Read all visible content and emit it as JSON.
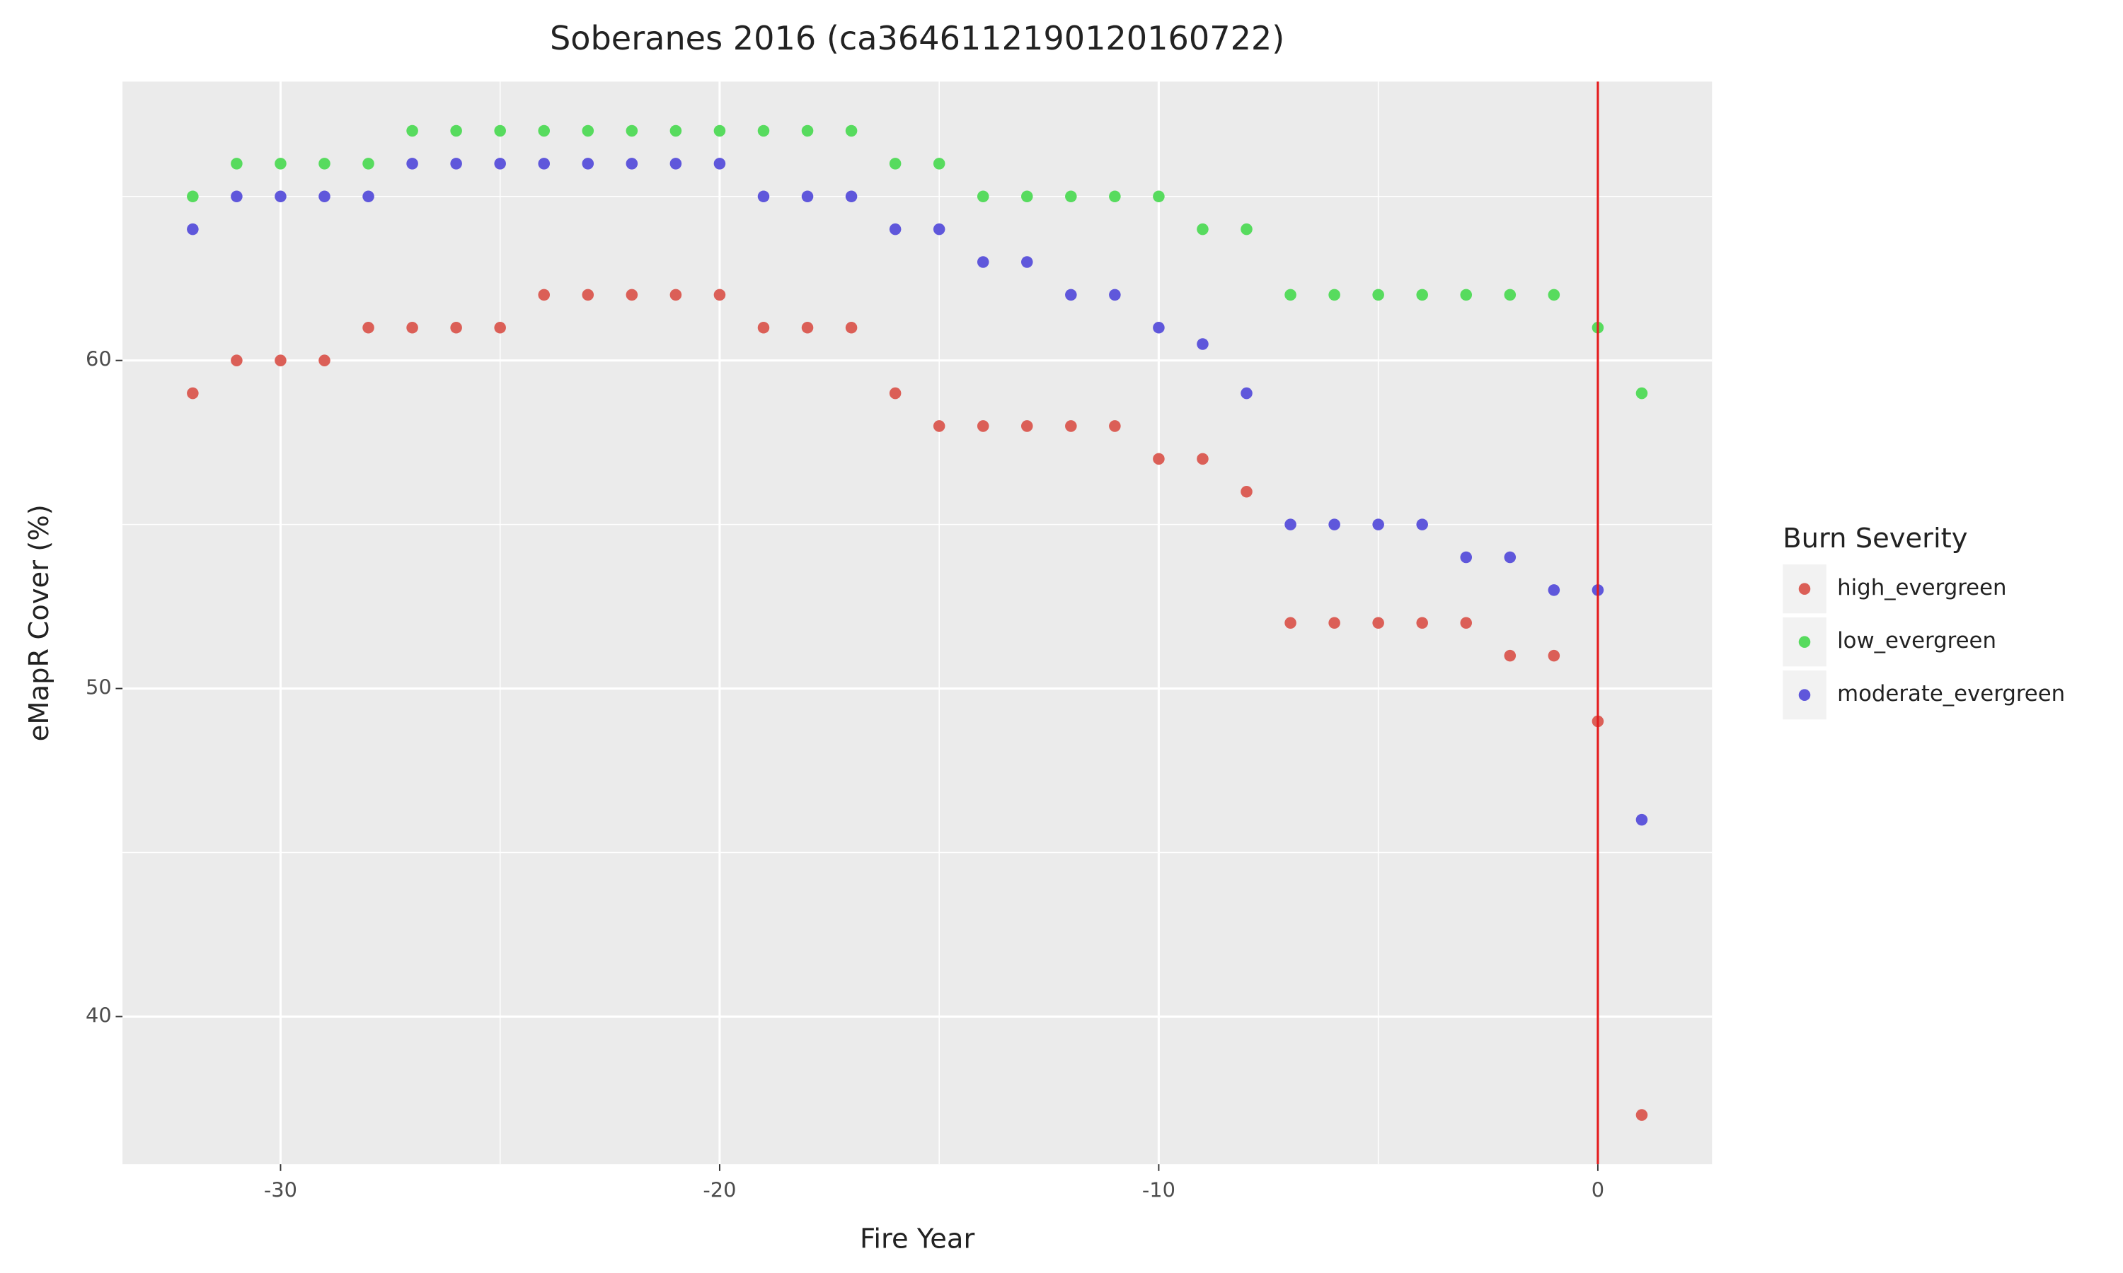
{
  "chart_data": {
    "type": "scatter",
    "title": "Soberanes 2016 (ca3646112190120160722)",
    "x_label": "Fire Year",
    "y_label": "eMapR Cover (%)",
    "legend_title": "Burn Severity",
    "legend_position": "right",
    "grid": true,
    "xlim": [
      -33.6,
      2.6
    ],
    "ylim": [
      35.5,
      68.5
    ],
    "xticks": [
      -30,
      -20,
      -10,
      0
    ],
    "yticks": [
      40,
      50,
      60
    ],
    "xminorticks": [
      -25,
      -15,
      -5
    ],
    "yminorticks": [
      45,
      55,
      65
    ],
    "vline": {
      "x": 0,
      "color": "#e41a1c"
    },
    "x": [
      -32,
      -31,
      -30,
      -29,
      -28,
      -27,
      -26,
      -25,
      -24,
      -23,
      -22,
      -21,
      -20,
      -19,
      -18,
      -17,
      -16,
      -15,
      -14,
      -13,
      -12,
      -11,
      -10,
      -9,
      -8,
      -7,
      -6,
      -5,
      -4,
      -3,
      -2,
      -1,
      0,
      1
    ],
    "series": [
      {
        "name": "high_evergreen",
        "color": "#db5f57",
        "values": [
          59,
          60,
          60,
          60,
          61,
          61,
          61,
          61,
          62,
          62,
          62,
          62,
          62,
          61,
          61,
          61,
          59,
          58,
          58,
          58,
          58,
          58,
          57,
          57,
          56,
          52,
          52,
          52,
          52,
          52,
          51,
          51,
          49,
          37
        ]
      },
      {
        "name": "low_evergreen",
        "color": "#57db5e",
        "values": [
          65,
          66,
          66,
          66,
          66,
          67,
          67,
          67,
          67,
          67,
          67,
          67,
          67,
          67,
          67,
          67,
          66,
          66,
          65,
          65,
          65,
          65,
          65,
          64,
          64,
          62,
          62,
          62,
          62,
          62,
          62,
          62,
          61,
          59
        ]
      },
      {
        "name": "moderate_evergreen",
        "color": "#5f57db",
        "values": [
          64,
          65,
          65,
          65,
          65,
          66,
          66,
          66,
          66,
          66,
          66,
          66,
          66,
          65,
          65,
          65,
          64,
          64,
          63,
          63,
          62,
          62,
          61,
          60.5,
          59,
          55,
          55,
          55,
          55,
          54,
          54,
          53,
          53,
          46
        ]
      }
    ]
  }
}
